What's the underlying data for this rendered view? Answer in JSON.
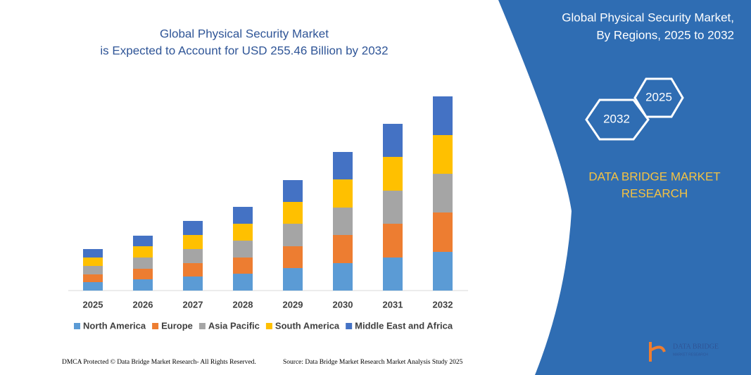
{
  "chart_data": {
    "type": "stacked-bar",
    "title": [
      "Global Physical Security Market",
      "is Expected to Account for USD 255.46 Billion by 2032"
    ],
    "categories": [
      "2025",
      "2026",
      "2027",
      "2028",
      "2029",
      "2030",
      "2031",
      "2032"
    ],
    "series": [
      {
        "name": "North America",
        "color": "#5b9bd5",
        "values": [
          11.1,
          14.8,
          18.5,
          22.2,
          29.6,
          36.1,
          43.5,
          50.9
        ]
      },
      {
        "name": "Europe",
        "color": "#ed7d31",
        "values": [
          10.2,
          13.9,
          17.6,
          21.3,
          28.7,
          37.0,
          44.4,
          51.8
        ]
      },
      {
        "name": "Asia Pacific",
        "color": "#a5a5a5",
        "values": [
          11.1,
          14.8,
          18.5,
          22.2,
          29.6,
          36.1,
          43.5,
          50.9
        ]
      },
      {
        "name": "South America",
        "color": "#ffc000",
        "values": [
          11.1,
          14.8,
          18.5,
          22.2,
          28.7,
          37.0,
          44.4,
          50.9
        ]
      },
      {
        "name": "Middle East and Africa",
        "color": "#4472c4",
        "values": [
          11.1,
          13.9,
          18.5,
          22.2,
          28.7,
          36.1,
          43.5,
          50.9
        ]
      }
    ],
    "legend": "bottom"
  },
  "panel": {
    "title": [
      "Global Physical Security Market,",
      "By Regions, 2025 to 2032"
    ],
    "hexagons": [
      "2025",
      "2032"
    ],
    "brand": [
      "DATA BRIDGE MARKET",
      "RESEARCH"
    ]
  },
  "footer": {
    "left": "DMCA Protected © Data Bridge Market Research-  All Rights Reserved.",
    "right": "Source: Data Bridge Market Research  Market Analysis Study 2025",
    "logo": [
      "DATA BRIDGE",
      "MARKET RESEARCH"
    ]
  }
}
